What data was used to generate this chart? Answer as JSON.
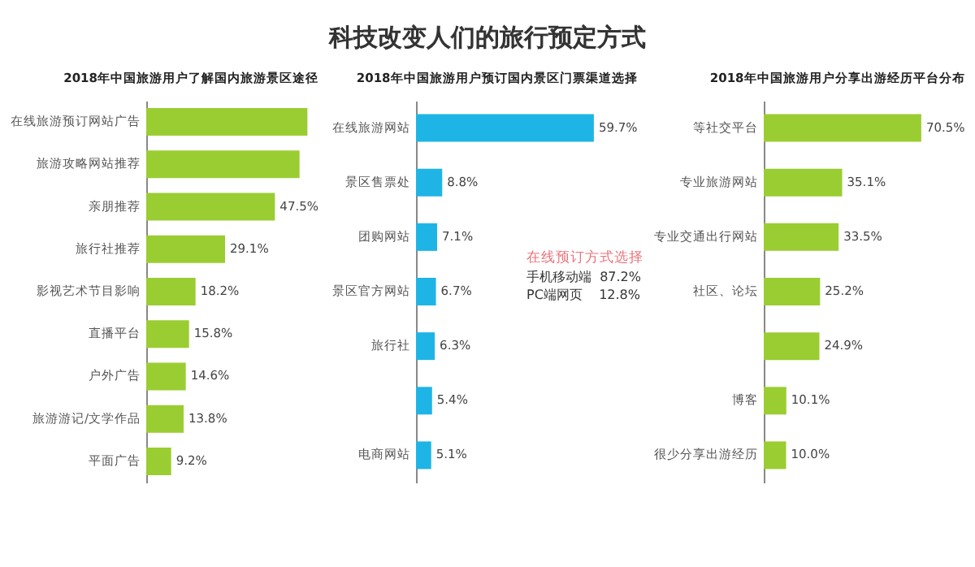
{
  "chart_data": [
    {
      "type": "other",
      "title": "科技改变人们的旅行预定方式"
    },
    {
      "type": "bar",
      "orientation": "horizontal",
      "title": "2018年中国旅游用户了解国内旅游景区途径",
      "categories": [
        "在线旅游预订网站广告",
        "旅游攻略网站推荐",
        "亲朋推荐",
        "旅行社推荐",
        "影视艺术节目影响",
        "直播平台",
        "户外广告",
        "旅游游记/文学作品",
        "平面广告"
      ],
      "values": [
        59.5,
        56.6,
        47.5,
        29.1,
        18.2,
        15.8,
        14.6,
        13.8,
        9.2
      ],
      "value_labels": [
        null,
        null,
        "47.5%",
        "29.1%",
        "18.2%",
        "15.8%",
        "14.6%",
        "13.8%",
        "9.2%"
      ],
      "color": "#9acd32"
    },
    {
      "type": "bar",
      "orientation": "horizontal",
      "title": "2018年中国旅游用户预订国内景区门票渠道选择",
      "categories": [
        "在线旅游网站",
        "景区售票处",
        "团购网站",
        "景区官方网站",
        "旅行社",
        null,
        "电商网站"
      ],
      "values": [
        59.7,
        8.8,
        7.1,
        6.7,
        6.3,
        5.4,
        5.1
      ],
      "value_labels": [
        "59.7%",
        "8.8%",
        "7.1%",
        "6.7%",
        "6.3%",
        "5.4%",
        "5.1%"
      ],
      "color": "#1fb4e6",
      "annotations": [
        "在线预订方式选择",
        "手机移动端  87.2%",
        "PC端网页    12.8%"
      ]
    },
    {
      "type": "bar",
      "orientation": "horizontal",
      "title": "2018年中国旅游用户分享出游经历平台分布",
      "categories": [
        "等社交平台",
        "专业旅游网站",
        "专业交通出行网站",
        "社区、论坛",
        null,
        "博客",
        "很少分享出游经历"
      ],
      "values": [
        70.5,
        35.1,
        33.5,
        25.2,
        24.9,
        10.1,
        10.0
      ],
      "value_labels": [
        "70.5%",
        "35.1%",
        "33.5%",
        "25.2%",
        "24.9%",
        "10.1%",
        "10.0%"
      ],
      "color": "#9acd32"
    }
  ]
}
